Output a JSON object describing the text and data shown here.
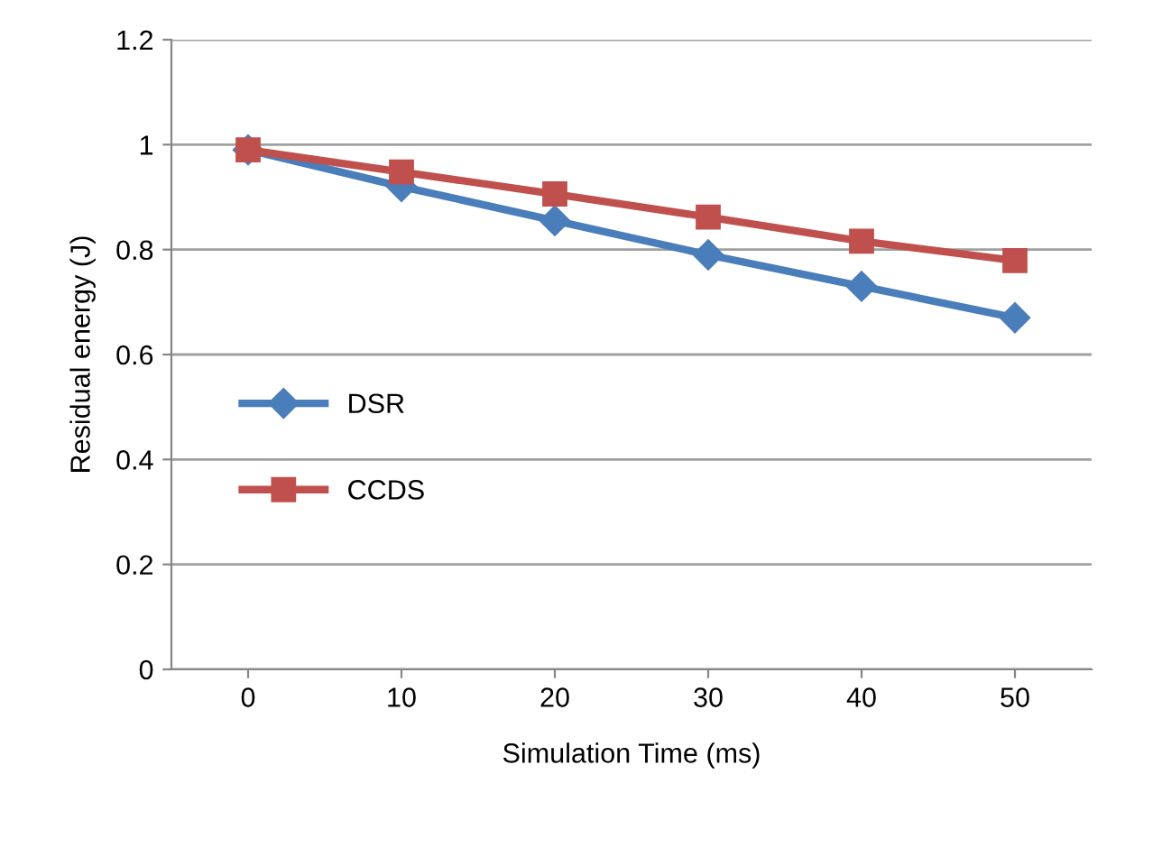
{
  "chart_data": {
    "type": "line",
    "xlabel": "Simulation Time (ms)",
    "ylabel": "Residual energy (J)",
    "categories": [
      "0",
      "10",
      "20",
      "30",
      "40",
      "50"
    ],
    "series": [
      {
        "name": "DSR",
        "color": "#4a7ebb",
        "marker": "diamond",
        "values": [
          0.99,
          0.92,
          0.855,
          0.79,
          0.73,
          0.67
        ]
      },
      {
        "name": "CCDS",
        "color": "#c0504d",
        "marker": "square",
        "values": [
          0.99,
          0.948,
          0.906,
          0.862,
          0.816,
          0.779
        ]
      }
    ],
    "ylim": [
      0,
      1.2
    ],
    "yticks": [
      0,
      0.2,
      0.4,
      0.6,
      0.8,
      1,
      1.2
    ],
    "grid": "y",
    "legend": "left"
  }
}
